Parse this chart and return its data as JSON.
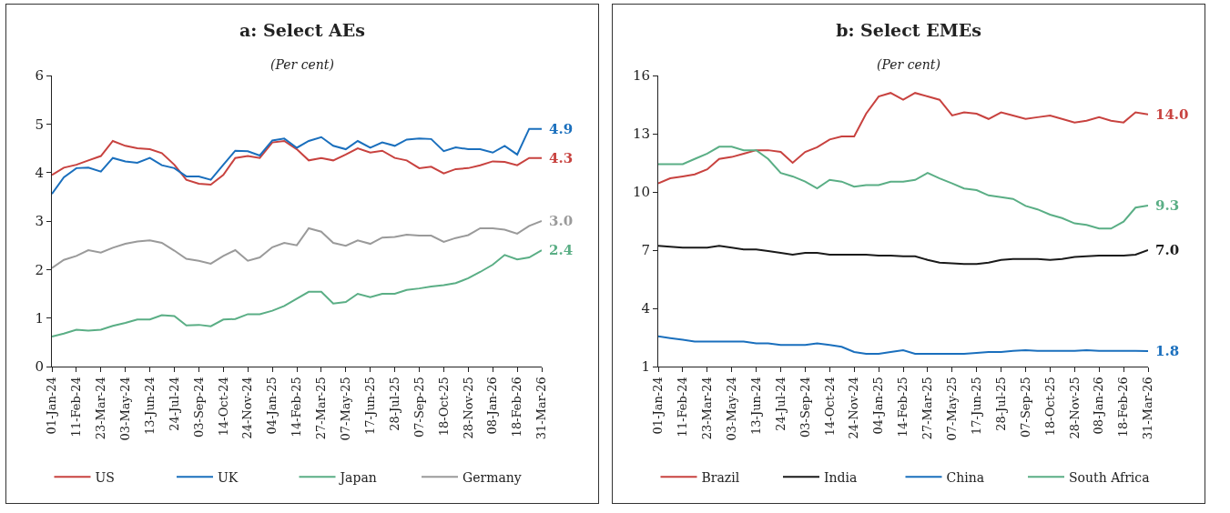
{
  "chart_data": [
    {
      "type": "line",
      "title": "a: Select AEs",
      "subtitle": "(Per cent)",
      "legend": "bottom",
      "grid": false,
      "marker": "none",
      "line_style": "solid",
      "x": [
        "2024-01-01",
        "2024-01-21",
        "2024-02-11",
        "2024-03-02",
        "2024-03-23",
        "2024-04-12",
        "2024-05-03",
        "2024-05-23",
        "2024-06-13",
        "2024-07-03",
        "2024-07-24",
        "2024-08-13",
        "2024-09-03",
        "2024-09-23",
        "2024-10-14",
        "2024-11-03",
        "2024-11-24",
        "2024-12-14",
        "2025-01-04",
        "2025-01-24",
        "2025-02-14",
        "2025-03-06",
        "2025-03-27",
        "2025-04-16",
        "2025-05-07",
        "2025-05-27",
        "2025-06-17",
        "2025-07-07",
        "2025-07-28",
        "2025-08-17",
        "2025-09-07",
        "2025-09-27",
        "2025-10-18",
        "2025-11-07",
        "2025-11-28",
        "2025-12-18",
        "2026-01-08",
        "2026-01-28",
        "2026-02-18",
        "2026-03-10",
        "2026-03-31"
      ],
      "xlim": [
        "2024-01-01",
        "2026-03-31"
      ],
      "xticks": [
        {
          "value": "2024-01-01",
          "label": "01-Jan-24"
        },
        {
          "value": "2024-02-11",
          "label": "11-Feb-24"
        },
        {
          "value": "2024-03-23",
          "label": "23-Mar-24"
        },
        {
          "value": "2024-05-03",
          "label": "03-May-24"
        },
        {
          "value": "2024-06-13",
          "label": "13-Jun-24"
        },
        {
          "value": "2024-07-24",
          "label": "24-Jul-24"
        },
        {
          "value": "2024-09-03",
          "label": "03-Sep-24"
        },
        {
          "value": "2024-10-14",
          "label": "14-Oct-24"
        },
        {
          "value": "2024-11-24",
          "label": "24-Nov-24"
        },
        {
          "value": "2025-01-04",
          "label": "04-Jan-25"
        },
        {
          "value": "2025-02-14",
          "label": "14-Feb-25"
        },
        {
          "value": "2025-03-27",
          "label": "27-Mar-25"
        },
        {
          "value": "2025-05-07",
          "label": "07-May-25"
        },
        {
          "value": "2025-06-17",
          "label": "17-Jun-25"
        },
        {
          "value": "2025-07-28",
          "label": "28-Jul-25"
        },
        {
          "value": "2025-09-07",
          "label": "07-Sep-25"
        },
        {
          "value": "2025-10-18",
          "label": "18-Oct-25"
        },
        {
          "value": "2025-11-28",
          "label": "28-Nov-25"
        },
        {
          "value": "2026-01-08",
          "label": "08-Jan-26"
        },
        {
          "value": "2026-02-18",
          "label": "18-Feb-26"
        },
        {
          "value": "2026-03-31",
          "label": "31-Mar-26"
        }
      ],
      "ylim": [
        0,
        6
      ],
      "yticks": [
        0,
        1,
        2,
        3,
        4,
        5,
        6
      ],
      "series": [
        {
          "name": "US",
          "color": "#c8423f",
          "values": [
            3.95,
            4.1,
            4.16,
            4.25,
            4.34,
            4.65,
            4.55,
            4.5,
            4.48,
            4.4,
            4.16,
            3.85,
            3.77,
            3.75,
            3.95,
            4.3,
            4.34,
            4.3,
            4.62,
            4.65,
            4.48,
            4.25,
            4.3,
            4.25,
            4.37,
            4.5,
            4.41,
            4.45,
            4.3,
            4.25,
            4.09,
            4.12,
            3.98,
            4.07,
            4.09,
            4.15,
            4.23,
            4.22,
            4.15,
            4.3,
            4.3
          ]
        },
        {
          "name": "UK",
          "color": "#1a6fbd",
          "values": [
            3.56,
            3.9,
            4.09,
            4.1,
            4.02,
            4.3,
            4.23,
            4.2,
            4.3,
            4.15,
            4.09,
            3.92,
            3.92,
            3.85,
            4.16,
            4.45,
            4.44,
            4.35,
            4.66,
            4.7,
            4.51,
            4.65,
            4.73,
            4.55,
            4.48,
            4.65,
            4.51,
            4.62,
            4.55,
            4.68,
            4.7,
            4.69,
            4.44,
            4.52,
            4.48,
            4.48,
            4.41,
            4.55,
            4.37,
            4.9,
            4.9
          ]
        },
        {
          "name": "Japan",
          "color": "#5aae85",
          "values": [
            0.62,
            0.68,
            0.76,
            0.74,
            0.76,
            0.84,
            0.9,
            0.97,
            0.97,
            1.06,
            1.04,
            0.85,
            0.86,
            0.83,
            0.97,
            0.98,
            1.08,
            1.08,
            1.15,
            1.25,
            1.4,
            1.54,
            1.54,
            1.3,
            1.33,
            1.5,
            1.43,
            1.5,
            1.5,
            1.58,
            1.61,
            1.65,
            1.68,
            1.72,
            1.82,
            1.95,
            2.1,
            2.3,
            2.21,
            2.25,
            2.4
          ]
        },
        {
          "name": "Germany",
          "color": "#9a9a9a",
          "values": [
            2.03,
            2.2,
            2.28,
            2.4,
            2.35,
            2.45,
            2.53,
            2.58,
            2.6,
            2.55,
            2.39,
            2.22,
            2.18,
            2.12,
            2.28,
            2.4,
            2.18,
            2.25,
            2.46,
            2.55,
            2.5,
            2.85,
            2.78,
            2.55,
            2.49,
            2.6,
            2.53,
            2.66,
            2.67,
            2.72,
            2.7,
            2.7,
            2.57,
            2.65,
            2.71,
            2.85,
            2.85,
            2.82,
            2.74,
            2.9,
            3.0
          ]
        }
      ],
      "annotations": [
        {
          "text": "4.3",
          "x": "2026-03-31",
          "y": 4.3
        },
        {
          "text": "4.9",
          "x": "2026-03-31",
          "y": 4.9
        },
        {
          "text": "2.4",
          "x": "2026-03-31",
          "y": 2.4
        },
        {
          "text": "3.0",
          "x": "2026-03-31",
          "y": 3.0
        }
      ]
    },
    {
      "type": "line",
      "title": "b: Select EMEs",
      "subtitle": "(Per cent)",
      "legend": "bottom",
      "grid": false,
      "marker": "none",
      "line_style": "solid",
      "x": [
        "2024-01-01",
        "2024-01-21",
        "2024-02-11",
        "2024-03-02",
        "2024-03-23",
        "2024-04-12",
        "2024-05-03",
        "2024-05-23",
        "2024-06-13",
        "2024-07-03",
        "2024-07-24",
        "2024-08-13",
        "2024-09-03",
        "2024-09-23",
        "2024-10-14",
        "2024-11-03",
        "2024-11-24",
        "2024-12-14",
        "2025-01-04",
        "2025-01-24",
        "2025-02-14",
        "2025-03-06",
        "2025-03-27",
        "2025-04-16",
        "2025-05-07",
        "2025-05-27",
        "2025-06-17",
        "2025-07-07",
        "2025-07-28",
        "2025-08-17",
        "2025-09-07",
        "2025-09-27",
        "2025-10-18",
        "2025-11-07",
        "2025-11-28",
        "2025-12-18",
        "2026-01-08",
        "2026-01-28",
        "2026-02-18",
        "2026-03-10",
        "2026-03-31"
      ],
      "xlim": [
        "2024-01-01",
        "2026-03-31"
      ],
      "xticks": [
        {
          "value": "2024-01-01",
          "label": "01-Jan-24"
        },
        {
          "value": "2024-02-11",
          "label": "11-Feb-24"
        },
        {
          "value": "2024-03-23",
          "label": "23-Mar-24"
        },
        {
          "value": "2024-05-03",
          "label": "03-May-24"
        },
        {
          "value": "2024-06-13",
          "label": "13-Jun-24"
        },
        {
          "value": "2024-07-24",
          "label": "24-Jul-24"
        },
        {
          "value": "2024-09-03",
          "label": "03-Sep-24"
        },
        {
          "value": "2024-10-14",
          "label": "14-Oct-24"
        },
        {
          "value": "2024-11-24",
          "label": "24-Nov-24"
        },
        {
          "value": "2025-01-04",
          "label": "04-Jan-25"
        },
        {
          "value": "2025-02-14",
          "label": "14-Feb-25"
        },
        {
          "value": "2025-03-27",
          "label": "27-Mar-25"
        },
        {
          "value": "2025-05-07",
          "label": "07-May-25"
        },
        {
          "value": "2025-06-17",
          "label": "17-Jun-25"
        },
        {
          "value": "2025-07-28",
          "label": "28-Jul-25"
        },
        {
          "value": "2025-09-07",
          "label": "07-Sep-25"
        },
        {
          "value": "2025-10-18",
          "label": "18-Oct-25"
        },
        {
          "value": "2025-11-28",
          "label": "28-Nov-25"
        },
        {
          "value": "2026-01-08",
          "label": "08-Jan-26"
        },
        {
          "value": "2026-02-18",
          "label": "18-Feb-26"
        },
        {
          "value": "2026-03-31",
          "label": "31-Mar-26"
        }
      ],
      "ylim": [
        1,
        16
      ],
      "yticks": [
        1,
        4,
        7,
        10,
        13,
        16
      ],
      "series": [
        {
          "name": "Brazil",
          "color": "#c8423f",
          "values": [
            10.44,
            10.7,
            10.8,
            10.9,
            11.16,
            11.7,
            11.8,
            11.97,
            12.15,
            12.15,
            12.06,
            11.5,
            12.06,
            12.3,
            12.7,
            12.86,
            12.86,
            14.03,
            14.92,
            15.1,
            14.75,
            15.1,
            14.92,
            14.75,
            13.94,
            14.1,
            14.03,
            13.76,
            14.1,
            13.94,
            13.76,
            13.85,
            13.94,
            13.76,
            13.58,
            13.67,
            13.85,
            13.67,
            13.58,
            14.1,
            14.0
          ]
        },
        {
          "name": "India",
          "color": "#1a1a1a",
          "values": [
            7.22,
            7.18,
            7.13,
            7.13,
            7.13,
            7.22,
            7.13,
            7.04,
            7.04,
            6.95,
            6.86,
            6.77,
            6.86,
            6.86,
            6.77,
            6.77,
            6.77,
            6.77,
            6.72,
            6.72,
            6.68,
            6.68,
            6.5,
            6.36,
            6.32,
            6.29,
            6.29,
            6.36,
            6.5,
            6.54,
            6.54,
            6.54,
            6.5,
            6.54,
            6.65,
            6.68,
            6.72,
            6.72,
            6.72,
            6.77,
            7.0
          ]
        },
        {
          "name": "China",
          "color": "#1a6fbd",
          "values": [
            2.56,
            2.47,
            2.38,
            2.29,
            2.29,
            2.29,
            2.29,
            2.29,
            2.2,
            2.2,
            2.11,
            2.11,
            2.11,
            2.2,
            2.11,
            2.02,
            1.75,
            1.66,
            1.66,
            1.75,
            1.84,
            1.66,
            1.66,
            1.66,
            1.66,
            1.66,
            1.7,
            1.75,
            1.75,
            1.81,
            1.84,
            1.81,
            1.81,
            1.81,
            1.81,
            1.84,
            1.81,
            1.81,
            1.81,
            1.81,
            1.8
          ]
        },
        {
          "name": "South Africa",
          "color": "#5aae85",
          "values": [
            11.43,
            11.43,
            11.43,
            11.7,
            11.97,
            12.33,
            12.33,
            12.15,
            12.15,
            11.7,
            10.98,
            10.8,
            10.53,
            10.18,
            10.62,
            10.53,
            10.27,
            10.35,
            10.35,
            10.53,
            10.53,
            10.62,
            10.98,
            10.7,
            10.44,
            10.18,
            10.09,
            9.82,
            9.73,
            9.64,
            9.28,
            9.1,
            8.83,
            8.65,
            8.38,
            8.3,
            8.11,
            8.11,
            8.47,
            9.19,
            9.3
          ]
        }
      ],
      "annotations": [
        {
          "text": "14.0",
          "x": "2026-03-31",
          "y": 14.0
        },
        {
          "text": "7.0",
          "x": "2026-03-31",
          "y": 7.0
        },
        {
          "text": "1.8",
          "x": "2026-03-31",
          "y": 1.8
        },
        {
          "text": "9.3",
          "x": "2026-03-31",
          "y": 9.3
        }
      ]
    }
  ]
}
